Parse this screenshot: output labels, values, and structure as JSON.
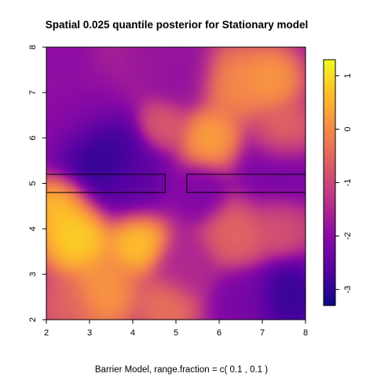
{
  "chart_data": {
    "type": "heatmap",
    "title": "Spatial 0.025 quantile posterior for Stationary model",
    "subtitle": "Barrier Model, range.fraction = c( 0.1 ,  0.1 )",
    "xlabel": "",
    "ylabel": "",
    "xlim": [
      2,
      8
    ],
    "ylim": [
      2,
      8
    ],
    "x_ticks": [
      "2",
      "3",
      "4",
      "5",
      "6",
      "7",
      "8"
    ],
    "y_ticks": [
      "2",
      "3",
      "4",
      "5",
      "6",
      "7",
      "8"
    ],
    "colorbar": {
      "range": [
        -3.3,
        1.3
      ],
      "ticks": [
        1,
        0,
        -1,
        -2,
        -3
      ],
      "tick_labels": [
        "1",
        "0",
        "-1",
        "-2",
        "-3"
      ],
      "palette": [
        "#0d0887",
        "#5402a3",
        "#8b0aa5",
        "#b93289",
        "#db5c68",
        "#f48849",
        "#febc2a",
        "#f0f921"
      ]
    },
    "barriers": [
      {
        "x": [
          2.0,
          4.75
        ],
        "y": [
          4.8,
          5.2
        ]
      },
      {
        "x": [
          5.25,
          8.0
        ],
        "y": [
          4.8,
          5.2
        ]
      }
    ],
    "field_features": [
      {
        "x": 3.2,
        "y": 5.6,
        "value": -3.3,
        "spread": 0.75
      },
      {
        "x": 3.9,
        "y": 5.1,
        "value": -2.6,
        "spread": 0.7
      },
      {
        "x": 2.6,
        "y": 6.5,
        "value": -2.0,
        "spread": 0.8
      },
      {
        "x": 5.6,
        "y": 4.8,
        "value": -2.2,
        "spread": 0.45
      },
      {
        "x": 7.4,
        "y": 5.2,
        "value": -2.3,
        "spread": 0.7
      },
      {
        "x": 7.6,
        "y": 2.5,
        "value": -3.1,
        "spread": 0.6
      },
      {
        "x": 6.6,
        "y": 2.4,
        "value": -2.3,
        "spread": 0.55
      },
      {
        "x": 5.1,
        "y": 7.4,
        "value": -1.9,
        "spread": 0.6
      },
      {
        "x": 4.4,
        "y": 7.8,
        "value": -1.8,
        "spread": 0.4
      },
      {
        "x": 2.3,
        "y": 7.8,
        "value": -2.0,
        "spread": 0.5
      },
      {
        "x": 5.2,
        "y": 3.1,
        "value": -1.5,
        "spread": 0.5
      },
      {
        "x": 2.7,
        "y": 3.8,
        "value": 1.2,
        "spread": 0.6
      },
      {
        "x": 4.1,
        "y": 3.7,
        "value": 1.0,
        "spread": 0.5
      },
      {
        "x": 2.3,
        "y": 4.5,
        "value": 0.9,
        "spread": 0.5
      },
      {
        "x": 3.3,
        "y": 2.6,
        "value": 0.4,
        "spread": 0.6
      },
      {
        "x": 4.8,
        "y": 2.3,
        "value": -0.2,
        "spread": 0.5
      },
      {
        "x": 5.8,
        "y": 6.0,
        "value": 0.5,
        "spread": 0.5
      },
      {
        "x": 6.4,
        "y": 7.2,
        "value": 0.2,
        "spread": 0.6
      },
      {
        "x": 7.2,
        "y": 7.3,
        "value": 0.4,
        "spread": 0.5
      },
      {
        "x": 7.5,
        "y": 6.1,
        "value": -0.3,
        "spread": 0.5
      },
      {
        "x": 4.7,
        "y": 6.3,
        "value": -0.6,
        "spread": 0.4
      },
      {
        "x": 6.4,
        "y": 3.9,
        "value": -0.4,
        "spread": 0.55
      },
      {
        "x": 7.4,
        "y": 4.1,
        "value": -0.7,
        "spread": 0.5
      },
      {
        "x": 2.5,
        "y": 2.3,
        "value": -0.5,
        "spread": 0.5
      }
    ],
    "field_base": -1.6
  }
}
